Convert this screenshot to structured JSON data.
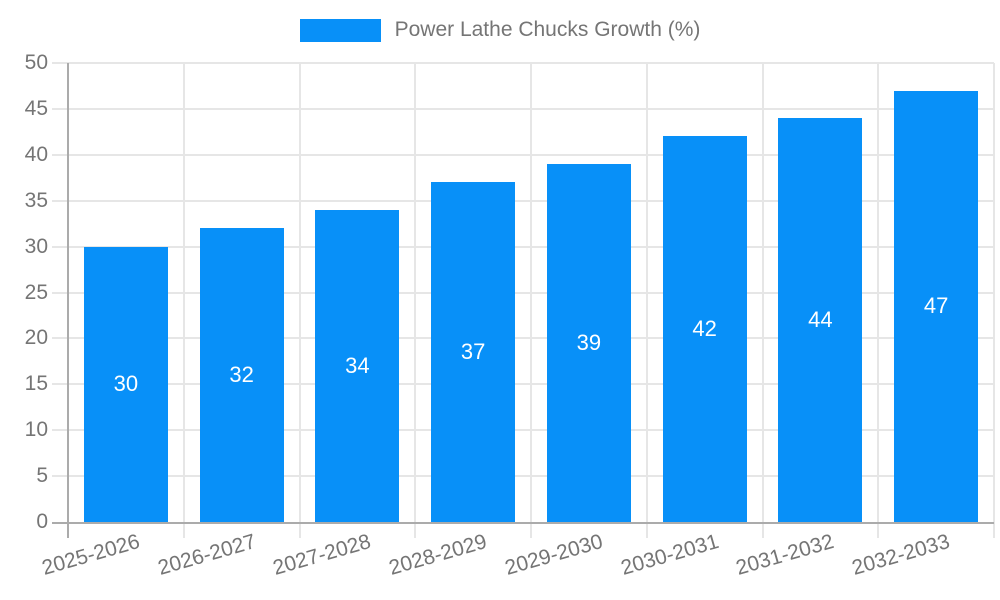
{
  "chart_data": {
    "type": "bar",
    "title": "Power Lathe Chucks Growth (%)",
    "categories": [
      "2025-2026",
      "2026-2027",
      "2027-2028",
      "2028-2029",
      "2029-2030",
      "2030-2031",
      "2031-2032",
      "2032-2033"
    ],
    "values": [
      30,
      32,
      34,
      37,
      39,
      42,
      44,
      47
    ],
    "xlabel": "",
    "ylabel": "",
    "ylim": [
      0,
      50
    ],
    "ytick_step": 5,
    "ytick_labels": [
      "0",
      "5",
      "10",
      "15",
      "20",
      "25",
      "30",
      "35",
      "40",
      "45",
      "50"
    ],
    "grid": true,
    "legend_position": "top",
    "colors": {
      "bar": "#0890F8",
      "bar_label": "#FFFFFF",
      "grid": "#E6E6E6",
      "axis_line": "#ABABAB",
      "axis_text": "#757575",
      "background": "#FFFFFF"
    }
  }
}
